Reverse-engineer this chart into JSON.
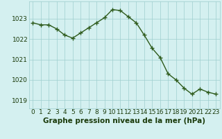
{
  "x": [
    0,
    1,
    2,
    3,
    4,
    5,
    6,
    7,
    8,
    9,
    10,
    11,
    12,
    13,
    14,
    15,
    16,
    17,
    18,
    19,
    20,
    21,
    22,
    23
  ],
  "y": [
    1022.8,
    1022.7,
    1022.7,
    1022.5,
    1022.2,
    1022.05,
    1022.3,
    1022.55,
    1022.8,
    1023.05,
    1023.45,
    1023.4,
    1023.1,
    1022.8,
    1022.2,
    1021.55,
    1021.1,
    1020.3,
    1020.0,
    1019.6,
    1019.3,
    1019.55,
    1019.4,
    1019.3
  ],
  "line_color": "#2d5a1b",
  "marker": "+",
  "marker_size": 4,
  "marker_linewidth": 1.0,
  "bg_color": "#d4f0f0",
  "grid_color": "#9ecece",
  "xlabel": "Graphe pression niveau de la mer (hPa)",
  "xlabel_color": "#1a3a0a",
  "xlabel_fontsize": 7.5,
  "ylabel_ticks": [
    1019,
    1020,
    1021,
    1022,
    1023
  ],
  "xlim": [
    -0.5,
    23.5
  ],
  "ylim": [
    1018.6,
    1023.85
  ],
  "tick_fontsize": 6.5,
  "tick_color": "#1a3a0a",
  "linewidth": 1.0
}
